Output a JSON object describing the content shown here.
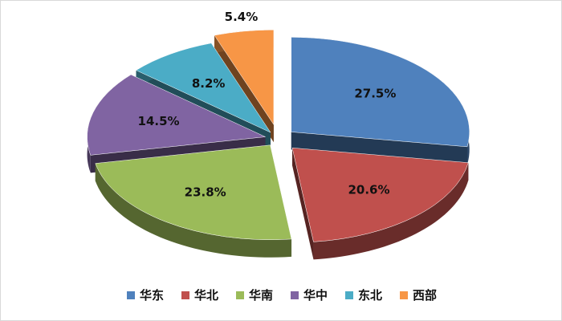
{
  "chart_data": {
    "type": "pie",
    "style": "3d-exploded",
    "categories": [
      "华东",
      "华北",
      "华南",
      "华中",
      "东北",
      "西部"
    ],
    "values": [
      27.5,
      20.6,
      23.8,
      14.5,
      8.2,
      5.4
    ],
    "labels": [
      "27.5%",
      "20.6%",
      "23.8%",
      "14.5%",
      "8.2%",
      "5.4%"
    ],
    "colors": [
      "#4F81BD",
      "#C0504D",
      "#9BBB59",
      "#8064A2",
      "#4BACC6",
      "#F79646"
    ],
    "legend_position": "bottom",
    "title": ""
  }
}
